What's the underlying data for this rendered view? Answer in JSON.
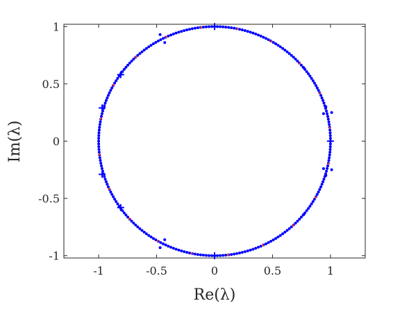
{
  "chart_data": {
    "type": "scatter",
    "xlabel": "Re(λ)",
    "ylabel": "Im(λ)",
    "xlim": [
      -1.3,
      1.3
    ],
    "ylim": [
      -1.02,
      1.02
    ],
    "xticks": [
      -1,
      -0.5,
      0,
      0.5,
      1
    ],
    "xtick_labels": [
      "-1",
      "-0.5",
      "0",
      "0.5",
      "1"
    ],
    "yticks": [
      -1,
      -0.5,
      0,
      0.5,
      1
    ],
    "ytick_labels": [
      "-1",
      "-0.5",
      "0",
      "0.5",
      "1"
    ],
    "grid": false,
    "box": true,
    "series": [
      {
        "marker": "dot",
        "color": "#0000ff",
        "description": "eigenvalues lying on the unit circle",
        "unit_circle_points": 260
      },
      {
        "marker": "dot",
        "color": "#ff3b1f",
        "unit_circle_points": 20
      },
      {
        "marker": "dot",
        "color": "#0000ff",
        "points": [
          [
            -0.47,
            0.93
          ],
          [
            -0.43,
            0.86
          ],
          [
            -0.47,
            -0.93
          ],
          [
            -0.43,
            -0.86
          ],
          [
            0.94,
            0.24
          ],
          [
            1.01,
            0.25
          ],
          [
            0.94,
            -0.24
          ],
          [
            1.01,
            -0.25
          ],
          [
            0.77,
            0.64
          ],
          [
            0.77,
            -0.64
          ],
          [
            0.96,
            0.3
          ],
          [
            0.96,
            -0.3
          ]
        ]
      },
      {
        "marker": "plus",
        "color": "#0000ff",
        "points": [
          [
            0,
            1
          ],
          [
            0,
            -1
          ],
          [
            1,
            0
          ],
          [
            -0.81,
            0.58
          ],
          [
            -0.81,
            -0.58
          ],
          [
            -0.97,
            0.29
          ],
          [
            -0.97,
            -0.29
          ]
        ]
      }
    ]
  }
}
